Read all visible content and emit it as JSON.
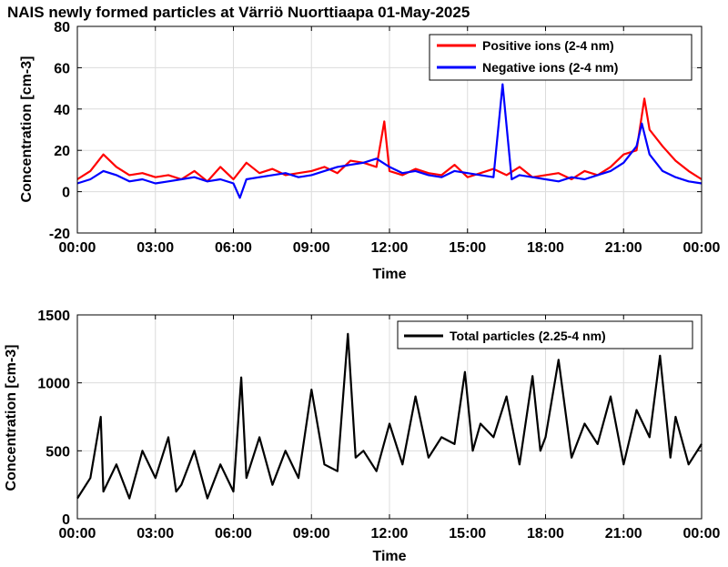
{
  "figure": {
    "title": "NAIS newly formed particles at Värriö Nuorttiaapa 01-May-2025"
  },
  "chart_data": [
    {
      "type": "line",
      "xlabel": "Time",
      "ylabel": "Concentration [cm-3]",
      "xlim": [
        0,
        24
      ],
      "ylim": [
        -20,
        80
      ],
      "grid": true,
      "legend_position": "top-right",
      "x_ticks": [
        0,
        3,
        6,
        9,
        12,
        15,
        18,
        21,
        24
      ],
      "x_tick_labels": [
        "00:00",
        "03:00",
        "06:00",
        "09:00",
        "12:00",
        "15:00",
        "18:00",
        "21:00",
        "00:00"
      ],
      "y_ticks": [
        -20,
        0,
        20,
        40,
        60,
        80
      ],
      "y_tick_labels": [
        "-20",
        "0",
        "20",
        "40",
        "60",
        "80"
      ],
      "series": [
        {
          "name": "Positive ions (2-4 nm)",
          "color": "#ff0000",
          "x": [
            0,
            0.5,
            1,
            1.5,
            2,
            2.5,
            3,
            3.5,
            4,
            4.5,
            5,
            5.5,
            6,
            6.5,
            7,
            7.5,
            8,
            8.5,
            9,
            9.5,
            10,
            10.5,
            11,
            11.5,
            11.8,
            12,
            12.5,
            13,
            13.5,
            14,
            14.5,
            15,
            15.5,
            16,
            16.5,
            17,
            17.5,
            18,
            18.5,
            19,
            19.5,
            20,
            20.5,
            21,
            21.5,
            21.8,
            22,
            22.5,
            23,
            23.5,
            24
          ],
          "values": [
            6,
            10,
            18,
            12,
            8,
            9,
            7,
            8,
            6,
            10,
            5,
            12,
            6,
            14,
            9,
            11,
            8,
            9,
            10,
            12,
            9,
            15,
            14,
            12,
            34,
            10,
            8,
            11,
            9,
            8,
            13,
            7,
            9,
            11,
            8,
            12,
            7,
            8,
            9,
            6,
            10,
            8,
            12,
            18,
            20,
            45,
            30,
            22,
            15,
            10,
            6
          ]
        },
        {
          "name": "Negative ions (2-4 nm)",
          "color": "#0000ff",
          "x": [
            0,
            0.5,
            1,
            1.5,
            2,
            2.5,
            3,
            3.5,
            4,
            4.5,
            5,
            5.5,
            6,
            6.25,
            6.5,
            7,
            7.5,
            8,
            8.5,
            9,
            9.5,
            10,
            10.5,
            11,
            11.5,
            12,
            12.5,
            13,
            13.5,
            14,
            14.5,
            15,
            15.5,
            16,
            16.35,
            16.7,
            17,
            17.5,
            18,
            18.5,
            19,
            19.5,
            20,
            20.5,
            21,
            21.5,
            21.7,
            22,
            22.5,
            23,
            23.5,
            24
          ],
          "values": [
            4,
            6,
            10,
            8,
            5,
            6,
            4,
            5,
            6,
            7,
            5,
            6,
            4,
            -3,
            6,
            7,
            8,
            9,
            7,
            8,
            10,
            12,
            13,
            14,
            16,
            12,
            9,
            10,
            8,
            7,
            10,
            9,
            8,
            7,
            52,
            6,
            8,
            7,
            6,
            5,
            7,
            6,
            8,
            10,
            14,
            22,
            33,
            18,
            10,
            7,
            5,
            4
          ]
        }
      ]
    },
    {
      "type": "line",
      "xlabel": "Time",
      "ylabel": "Concentration [cm-3]",
      "xlim": [
        0,
        24
      ],
      "ylim": [
        0,
        1500
      ],
      "grid": true,
      "legend_position": "top-right",
      "x_ticks": [
        0,
        3,
        6,
        9,
        12,
        15,
        18,
        21,
        24
      ],
      "x_tick_labels": [
        "00:00",
        "03:00",
        "06:00",
        "09:00",
        "12:00",
        "15:00",
        "18:00",
        "21:00",
        "00:00"
      ],
      "y_ticks": [
        0,
        500,
        1000,
        1500
      ],
      "y_tick_labels": [
        "0",
        "500",
        "1000",
        "1500"
      ],
      "series": [
        {
          "name": "Total particles (2.25-4 nm)",
          "color": "#000000",
          "x": [
            0,
            0.5,
            0.9,
            1,
            1.5,
            2,
            2.5,
            3,
            3.5,
            3.8,
            4,
            4.5,
            5,
            5.5,
            6,
            6.3,
            6.5,
            7,
            7.5,
            8,
            8.5,
            9,
            9.5,
            10,
            10.4,
            10.7,
            11,
            11.5,
            12,
            12.5,
            13,
            13.5,
            14,
            14.5,
            14.9,
            15.2,
            15.5,
            16,
            16.5,
            17,
            17.5,
            17.8,
            18,
            18.5,
            19,
            19.5,
            20,
            20.5,
            21,
            21.5,
            22,
            22.4,
            22.8,
            23,
            23.5,
            24
          ],
          "values": [
            150,
            300,
            750,
            200,
            400,
            150,
            500,
            300,
            600,
            200,
            250,
            500,
            150,
            400,
            200,
            1040,
            300,
            600,
            250,
            500,
            300,
            950,
            400,
            350,
            1360,
            450,
            500,
            350,
            700,
            400,
            900,
            450,
            600,
            550,
            1080,
            500,
            700,
            600,
            900,
            400,
            1050,
            500,
            600,
            1170,
            450,
            700,
            550,
            900,
            400,
            800,
            600,
            1200,
            450,
            750,
            400,
            550
          ]
        }
      ]
    }
  ]
}
